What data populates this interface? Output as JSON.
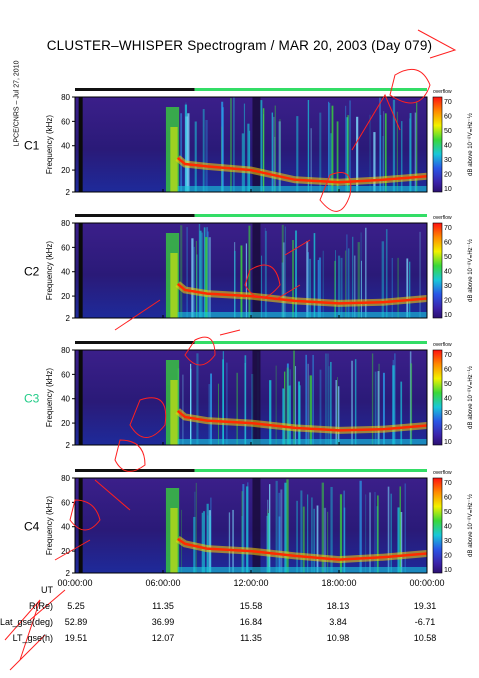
{
  "title": "CLUSTER–WHISPER Spectrogram / MAR 20, 2003 (Day 079)",
  "credit": "LPCE/CNRS – Jul 27, 2010",
  "colorbar": {
    "top_label": "overflow",
    "ticks": [
      "70",
      "60",
      "50",
      "40",
      "30",
      "20",
      "10"
    ],
    "unit_label": "dB above 10⁻⁸VₘHz⁻½"
  },
  "panels": [
    {
      "id": "C1",
      "label": "C1",
      "label_color": "#000000"
    },
    {
      "id": "C2",
      "label": "C2",
      "label_color": "#000000"
    },
    {
      "id": "C3",
      "label": "C3",
      "label_color": "#22cc88"
    },
    {
      "id": "C4",
      "label": "C4",
      "label_color": "#000000"
    }
  ],
  "y_axis": {
    "label": "Frequency (kHz)",
    "ticks": [
      "80",
      "60",
      "40",
      "20",
      "2"
    ]
  },
  "time_axis": {
    "ticks": [
      "00:00:00",
      "06:00:00",
      "12:00:00",
      "18:00:00",
      "00:00:00"
    ]
  },
  "orbit": {
    "rows": [
      {
        "label": "UT",
        "values": []
      },
      {
        "label": "R(Re)",
        "values": [
          "5.25",
          "11.35",
          "15.58",
          "18.13",
          "19.31"
        ]
      },
      {
        "label": "Lat_gse(deg)",
        "values": [
          "52.89",
          "36.99",
          "16.84",
          "3.84",
          "-6.71"
        ]
      },
      {
        "label": "LT_gse(h)",
        "values": [
          "19.51",
          "12.07",
          "11.35",
          "10.98",
          "10.58"
        ]
      }
    ]
  },
  "chart_data": {
    "type": "heatmap",
    "title": "CLUSTER–WHISPER Spectrogram / MAR 20, 2003 (Day 079)",
    "xlabel": "UT",
    "ylabel": "Frequency (kHz)",
    "xlim": [
      "00:00:00",
      "24:00:00"
    ],
    "ylim": [
      2,
      80
    ],
    "zlabel": "dB above 10⁻⁸ V Hz⁻½",
    "zlim": [
      10,
      70
    ],
    "series": [
      {
        "name": "C1",
        "plasma_line_khz": [
          [
            0.0,
            null
          ],
          [
            7.0,
            30
          ],
          [
            7.5,
            25
          ],
          [
            9,
            23
          ],
          [
            12,
            20
          ],
          [
            15,
            12
          ],
          [
            18,
            10
          ],
          [
            21,
            12
          ],
          [
            24,
            15
          ]
        ]
      },
      {
        "name": "C2",
        "plasma_line_khz": [
          [
            0.0,
            null
          ],
          [
            7.0,
            30
          ],
          [
            7.5,
            25
          ],
          [
            9,
            22
          ],
          [
            12,
            20
          ],
          [
            15,
            16
          ],
          [
            18,
            14
          ],
          [
            21,
            15
          ],
          [
            24,
            18
          ]
        ]
      },
      {
        "name": "C3",
        "plasma_line_khz": [
          [
            0.0,
            null
          ],
          [
            7.0,
            30
          ],
          [
            7.5,
            25
          ],
          [
            9,
            22
          ],
          [
            12,
            20
          ],
          [
            15,
            16
          ],
          [
            18,
            14
          ],
          [
            21,
            15
          ],
          [
            24,
            18
          ]
        ]
      },
      {
        "name": "C4",
        "plasma_line_khz": [
          [
            0.0,
            null
          ],
          [
            7.0,
            30
          ],
          [
            7.5,
            26
          ],
          [
            9,
            22
          ],
          [
            12,
            20
          ],
          [
            15,
            16
          ],
          [
            18,
            13
          ],
          [
            21,
            15
          ],
          [
            24,
            18
          ]
        ]
      }
    ]
  }
}
